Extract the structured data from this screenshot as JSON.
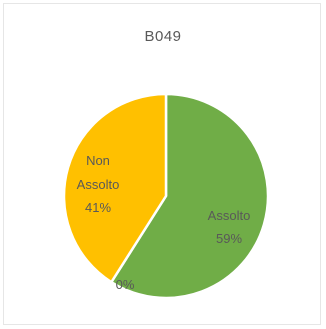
{
  "chart_data": {
    "type": "pie",
    "title": "B049",
    "slices": [
      {
        "name": "Assolto",
        "value": 59,
        "percent_label": "59%",
        "color": "#70ad47"
      },
      {
        "name": "Non Assolto",
        "value": 41,
        "percent_label": "41%",
        "color": "#ffc000"
      },
      {
        "name": "",
        "value": 0,
        "percent_label": "0%",
        "color": "#a5a5a5"
      }
    ],
    "label_lines": {
      "assolto": [
        "Assolto",
        "59%"
      ],
      "non_assolto": [
        "Non",
        "Assolto",
        "41%"
      ],
      "zero": [
        "0%"
      ]
    }
  }
}
